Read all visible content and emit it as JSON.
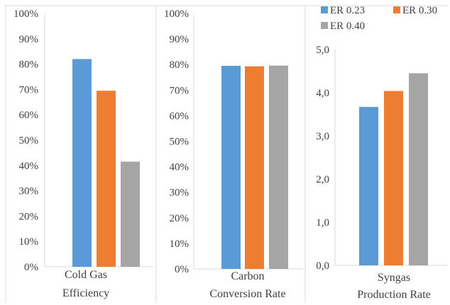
{
  "colors": {
    "er023": "#5B9BD5",
    "er030": "#ED7D31",
    "er040": "#A5A5A5",
    "axis": "#D9D9D9",
    "text": "#404040"
  },
  "chart_data": [
    {
      "type": "bar",
      "categories": [
        [
          "Cold Gas",
          "Efficiency"
        ]
      ],
      "series": [
        {
          "name": "ER 0.23",
          "values": [
            82
          ]
        },
        {
          "name": "ER 0.30",
          "values": [
            69.5
          ]
        },
        {
          "name": "ER 0.40",
          "values": [
            41.5
          ]
        }
      ],
      "ylim": [
        0,
        100
      ],
      "yticks": [
        "0%",
        "10%",
        "20%",
        "30%",
        "40%",
        "50%",
        "60%",
        "70%",
        "80%",
        "90%",
        "100%"
      ],
      "grid": false
    },
    {
      "type": "bar",
      "categories": [
        [
          "Carbon",
          "Conversion Rate"
        ]
      ],
      "series": [
        {
          "name": "ER 0.23",
          "values": [
            79.5
          ]
        },
        {
          "name": "ER 0.30",
          "values": [
            79.3
          ]
        },
        {
          "name": "ER 0.40",
          "values": [
            79.6
          ]
        }
      ],
      "ylim": [
        0,
        100
      ],
      "yticks": [
        "0%",
        "10%",
        "20%",
        "30%",
        "40%",
        "50%",
        "60%",
        "70%",
        "80%",
        "90%",
        "100%"
      ],
      "grid": false
    },
    {
      "type": "bar",
      "categories": [
        [
          "Syngas",
          "Production Rate"
        ]
      ],
      "series": [
        {
          "name": "ER 0.23",
          "values": [
            3.67
          ]
        },
        {
          "name": "ER 0.30",
          "values": [
            4.04
          ]
        },
        {
          "name": "ER 0.40",
          "values": [
            4.45
          ]
        }
      ],
      "ylim": [
        0,
        5
      ],
      "yticks": [
        "0,0",
        "1,0",
        "2,0",
        "3,0",
        "4,0",
        "5,0"
      ],
      "grid": false,
      "legend": "top",
      "legend_entries": [
        "ER 0.23",
        "ER 0.30",
        "ER 0.40"
      ]
    }
  ]
}
